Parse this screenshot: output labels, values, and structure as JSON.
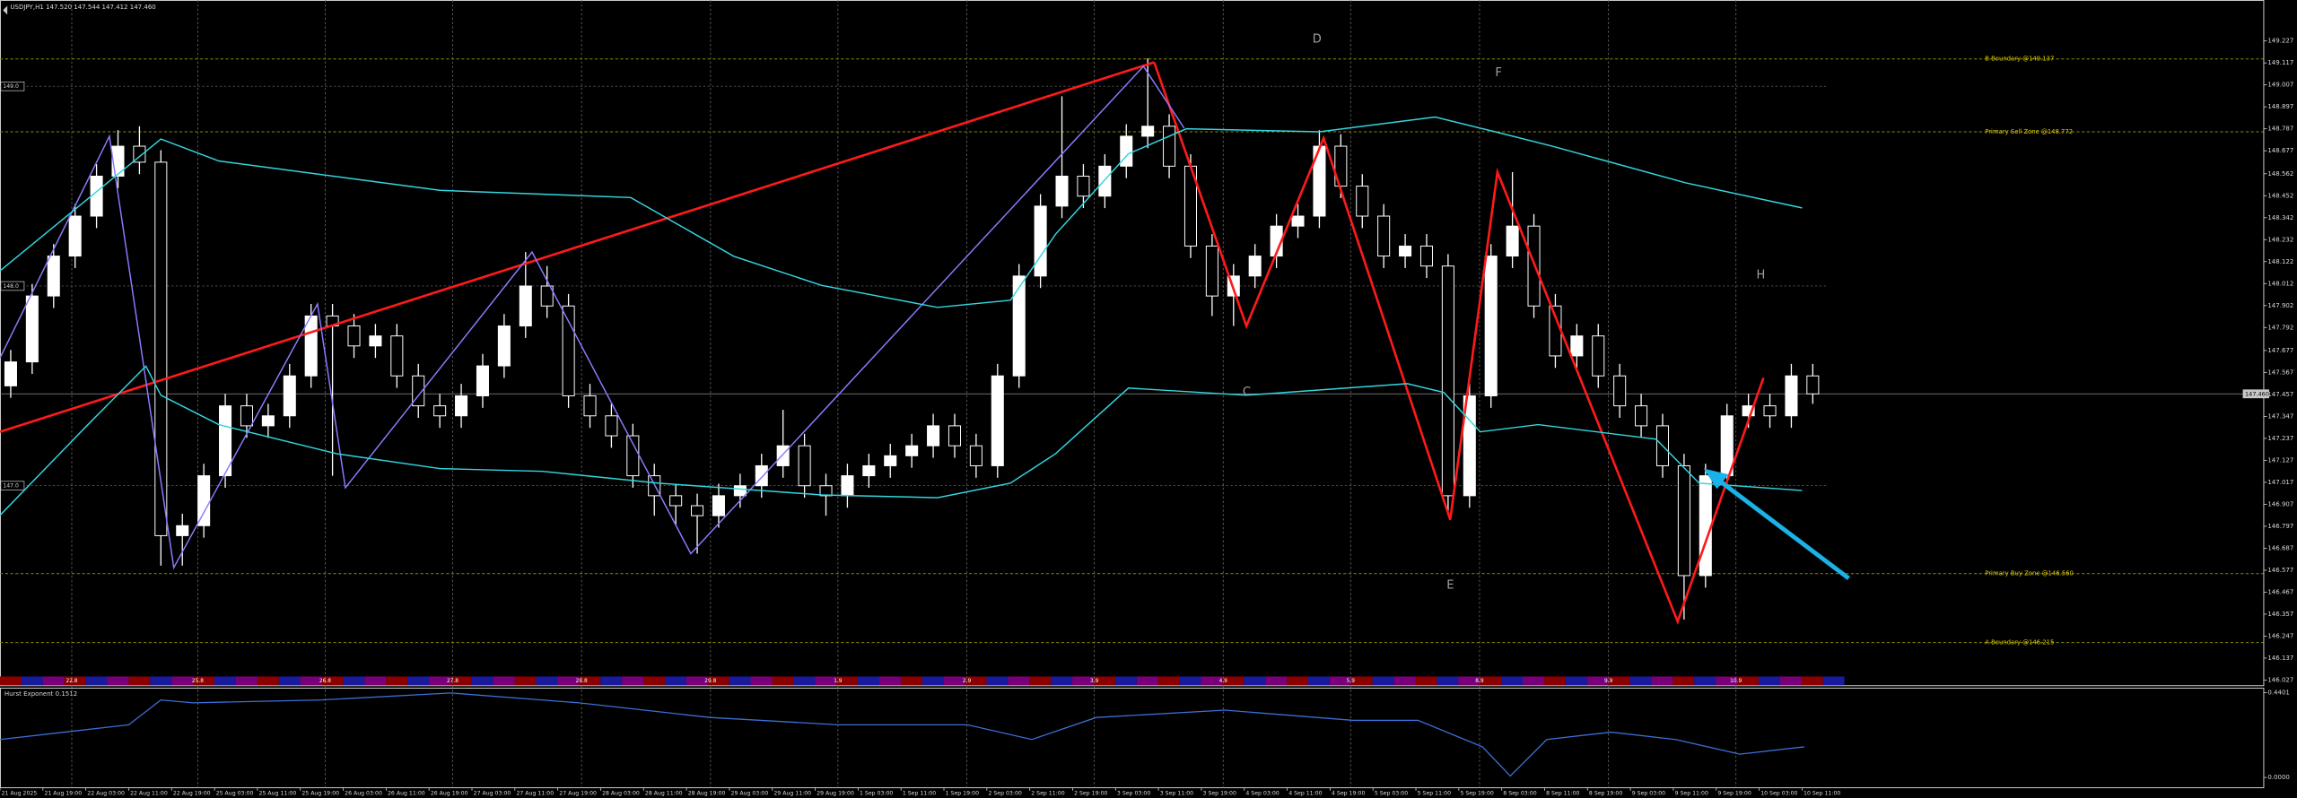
{
  "chart_data": [
    {
      "type": "candlestick",
      "title": "USDJPY,H1 147.520 147.544 147.412 147.460",
      "categories": [
        "21 Aug 2025",
        "21 Aug 19:00",
        "22 Aug 03:00",
        "22 Aug 11:00",
        "22 Aug 19:00",
        "25 Aug 03:00",
        "25 Aug 11:00",
        "25 Aug 19:00",
        "26 Aug 03:00",
        "26 Aug 11:00",
        "26 Aug 19:00",
        "27 Aug 03:00",
        "27 Aug 11:00",
        "27 Aug 19:00",
        "28 Aug 03:00",
        "28 Aug 11:00",
        "28 Aug 19:00",
        "29 Aug 03:00",
        "29 Aug 11:00",
        "29 Aug 19:00",
        "1 Sep 03:00",
        "1 Sep 11:00",
        "1 Sep 19:00",
        "2 Sep 03:00",
        "2 Sep 11:00",
        "2 Sep 19:00",
        "3 Sep 03:00",
        "3 Sep 11:00",
        "3 Sep 19:00",
        "4 Sep 03:00",
        "4 Sep 11:00",
        "4 Sep 19:00",
        "5 Sep 03:00",
        "5 Sep 11:00",
        "5 Sep 19:00",
        "8 Sep 03:00",
        "8 Sep 11:00",
        "8 Sep 19:00",
        "9 Sep 03:00",
        "9 Sep 11:00",
        "9 Sep 19:00",
        "10 Sep 03:00",
        "10 Sep 11:00"
      ],
      "ohlc": [
        [
          147.5,
          147.68,
          147.44,
          147.62
        ],
        [
          147.62,
          148.01,
          147.56,
          147.95
        ],
        [
          147.95,
          148.21,
          147.89,
          148.15
        ],
        [
          148.15,
          148.41,
          148.09,
          148.35
        ],
        [
          148.35,
          148.61,
          148.29,
          148.55
        ],
        [
          148.55,
          148.78,
          148.49,
          148.7
        ],
        [
          148.7,
          148.8,
          148.56,
          148.62
        ],
        [
          148.62,
          148.68,
          146.6,
          146.75
        ],
        [
          146.75,
          146.86,
          146.6,
          146.8
        ],
        [
          146.8,
          147.11,
          146.74,
          147.05
        ],
        [
          147.05,
          147.46,
          146.99,
          147.4
        ],
        [
          147.4,
          147.46,
          147.24,
          147.3
        ],
        [
          147.3,
          147.41,
          147.24,
          147.35
        ],
        [
          147.35,
          147.61,
          147.29,
          147.55
        ],
        [
          147.55,
          147.91,
          147.49,
          147.85
        ],
        [
          147.85,
          147.91,
          147.05,
          147.8
        ],
        [
          147.8,
          147.86,
          147.64,
          147.7
        ],
        [
          147.7,
          147.81,
          147.64,
          147.75
        ],
        [
          147.75,
          147.81,
          147.49,
          147.55
        ],
        [
          147.55,
          147.61,
          147.34,
          147.4
        ],
        [
          147.4,
          147.46,
          147.29,
          147.35
        ],
        [
          147.35,
          147.51,
          147.29,
          147.45
        ],
        [
          147.45,
          147.66,
          147.39,
          147.6
        ],
        [
          147.6,
          147.86,
          147.54,
          147.8
        ],
        [
          147.8,
          148.17,
          147.74,
          148.0
        ],
        [
          148.0,
          148.1,
          147.84,
          147.9
        ],
        [
          147.9,
          147.96,
          147.39,
          147.45
        ],
        [
          147.45,
          147.51,
          147.29,
          147.35
        ],
        [
          147.35,
          147.41,
          147.19,
          147.25
        ],
        [
          147.25,
          147.31,
          146.99,
          147.05
        ],
        [
          147.05,
          147.11,
          146.85,
          146.95
        ],
        [
          146.95,
          147.01,
          146.8,
          146.9
        ],
        [
          146.9,
          146.96,
          146.66,
          146.85
        ],
        [
          146.85,
          147.01,
          146.79,
          146.95
        ],
        [
          146.95,
          147.06,
          146.89,
          147.0
        ],
        [
          147.0,
          147.16,
          146.94,
          147.1
        ],
        [
          147.1,
          147.38,
          147.04,
          147.2
        ],
        [
          147.2,
          147.26,
          146.94,
          147.0
        ],
        [
          147.0,
          147.06,
          146.85,
          146.95
        ],
        [
          146.95,
          147.11,
          146.89,
          147.05
        ],
        [
          147.05,
          147.16,
          146.99,
          147.1
        ],
        [
          147.1,
          147.21,
          147.04,
          147.15
        ],
        [
          147.15,
          147.26,
          147.09,
          147.2
        ],
        [
          147.2,
          147.36,
          147.14,
          147.3
        ],
        [
          147.3,
          147.36,
          147.14,
          147.2
        ],
        [
          147.2,
          147.26,
          147.04,
          147.1
        ],
        [
          147.1,
          147.61,
          147.04,
          147.55
        ],
        [
          147.55,
          148.11,
          147.49,
          148.05
        ],
        [
          148.05,
          148.46,
          147.99,
          148.4
        ],
        [
          148.4,
          148.95,
          148.34,
          148.55
        ],
        [
          148.55,
          148.61,
          148.39,
          148.45
        ],
        [
          148.45,
          148.66,
          148.39,
          148.6
        ],
        [
          148.6,
          148.81,
          148.54,
          148.75
        ],
        [
          148.75,
          149.14,
          148.69,
          148.8
        ],
        [
          148.8,
          148.86,
          148.54,
          148.6
        ],
        [
          148.6,
          148.66,
          148.14,
          148.2
        ],
        [
          148.2,
          148.26,
          147.85,
          147.95
        ],
        [
          147.95,
          148.11,
          147.8,
          148.05
        ],
        [
          148.05,
          148.21,
          147.99,
          148.15
        ],
        [
          148.15,
          148.36,
          148.09,
          148.3
        ],
        [
          148.3,
          148.41,
          148.24,
          148.35
        ],
        [
          148.35,
          148.78,
          148.29,
          148.7
        ],
        [
          148.7,
          148.76,
          148.44,
          148.5
        ],
        [
          148.5,
          148.56,
          148.29,
          148.35
        ],
        [
          148.35,
          148.41,
          148.09,
          148.15
        ],
        [
          148.15,
          148.26,
          148.09,
          148.2
        ],
        [
          148.2,
          148.26,
          148.04,
          148.1
        ],
        [
          148.1,
          148.16,
          146.85,
          146.95
        ],
        [
          146.95,
          147.51,
          146.89,
          147.45
        ],
        [
          147.45,
          148.21,
          147.39,
          148.15
        ],
        [
          148.15,
          148.57,
          148.09,
          148.3
        ],
        [
          148.3,
          148.36,
          147.84,
          147.9
        ],
        [
          147.9,
          147.96,
          147.59,
          147.65
        ],
        [
          147.65,
          147.81,
          147.59,
          147.75
        ],
        [
          147.75,
          147.81,
          147.49,
          147.55
        ],
        [
          147.55,
          147.61,
          147.34,
          147.4
        ],
        [
          147.4,
          147.46,
          147.24,
          147.3
        ],
        [
          147.3,
          147.36,
          147.04,
          147.1
        ],
        [
          147.1,
          147.16,
          146.33,
          146.55
        ],
        [
          146.55,
          147.11,
          146.49,
          147.05
        ],
        [
          147.05,
          147.41,
          146.99,
          147.35
        ],
        [
          147.35,
          147.46,
          147.29,
          147.4
        ],
        [
          147.4,
          147.46,
          147.29,
          147.35
        ],
        [
          147.35,
          147.61,
          147.29,
          147.55
        ],
        [
          147.55,
          147.61,
          147.41,
          147.46
        ]
      ],
      "xlim": [
        -0.5,
        105
      ],
      "ylim": [
        146.001,
        149.432
      ],
      "yticks": [
        149.227,
        149.117,
        149.007,
        148.897,
        148.787,
        148.677,
        148.562,
        148.452,
        148.342,
        148.232,
        148.122,
        148.012,
        147.902,
        147.792,
        147.677,
        147.567,
        147.457,
        147.347,
        147.237,
        147.127,
        147.017,
        146.907,
        146.797,
        146.687,
        146.577,
        146.467,
        146.357,
        146.247,
        146.137,
        146.027
      ],
      "levels": [
        {
          "value": 149.137,
          "label": "B Boundary @149.137"
        },
        {
          "value": 148.772,
          "label": "Primary Sell Zone @148.772"
        },
        {
          "value": 146.56,
          "label": "Primary Buy Zone @146.560"
        },
        {
          "value": 146.215,
          "label": "A Boundary @146.215"
        }
      ],
      "price_tags": [
        {
          "value": 149,
          "label": "149.0"
        },
        {
          "value": 148,
          "label": "148.0"
        },
        {
          "value": 147,
          "label": "147.0"
        }
      ],
      "current_price": {
        "value": 147.46,
        "label": "147.460"
      },
      "annotations": [
        "D",
        "F",
        "H",
        "C",
        "E"
      ],
      "day_markers": [
        "22.8",
        "25.8",
        "26.8",
        "27.8",
        "28.8",
        "29.8",
        "1.9",
        "2.9",
        "3.9",
        "4.9",
        "5.9",
        "8.9",
        "9.9",
        "10.9"
      ],
      "lines": [
        {
          "color": "#ff1a1a",
          "x": [
            -0.5,
            53.3
          ],
          "values": [
            147.27,
            149.12
          ]
        },
        {
          "color": "#ff1a1a",
          "x": [
            53.3,
            57.6,
            61.2,
            67.1,
            69.3,
            77.7,
            81.7
          ],
          "values": [
            149.12,
            147.8,
            148.74,
            146.83,
            148.57,
            146.32,
            147.54
          ]
        },
        {
          "color": "#8a7cff",
          "x": [
            -0.5,
            4.6,
            7.6,
            14.3,
            15.6,
            24.3,
            31.7,
            52.8,
            54.7
          ],
          "values": [
            147.64,
            148.75,
            146.59,
            147.91,
            146.99,
            148.17,
            146.66,
            149.1,
            148.79
          ]
        },
        {
          "color": "#33d6e0",
          "x": [
            -0.5,
            7.0,
            9.7,
            20.0,
            28.9,
            33.7,
            37.8,
            43.2,
            46.6,
            48.7,
            52.1,
            54.8,
            61.0,
            66.4,
            69.2,
            71.9,
            78.1,
            83.5
          ],
          "values": [
            148.076,
            148.736,
            148.626,
            148.479,
            148.443,
            148.149,
            148.003,
            147.893,
            147.929,
            148.259,
            148.662,
            148.787,
            148.772,
            148.846,
            148.772,
            148.699,
            148.516,
            148.391
          ]
        },
        {
          "color": "#33d6e0",
          "x": [
            -0.5,
            3.6,
            6.3,
            7.0,
            9.7,
            15.2,
            20.0,
            24.8,
            30.2,
            37.8,
            43.2,
            46.6,
            48.7,
            52.1,
            57.6,
            65.1,
            66.8,
            68.5,
            71.2,
            76.7,
            78.7,
            83.5
          ],
          "values": [
            146.852,
            147.306,
            147.599,
            147.453,
            147.306,
            147.16,
            147.086,
            147.072,
            147.013,
            146.954,
            146.94,
            147.013,
            147.16,
            147.489,
            147.453,
            147.511,
            147.467,
            147.27,
            147.306,
            147.233,
            147.013,
            146.976
          ]
        }
      ]
    },
    {
      "type": "line",
      "title": "Hurst Exponent 0.1512",
      "color": "#3b6fd6",
      "xlim": [
        -0.5,
        105
      ],
      "x": [
        -0.5,
        2.5,
        5.5,
        7.0,
        8.5,
        14.5,
        20.5,
        26.5,
        32.6,
        38.6,
        44.6,
        47.6,
        50.6,
        56.6,
        62.6,
        65.6,
        68.6,
        69.9,
        71.6,
        74.6,
        77.6,
        80.6,
        83.6
      ],
      "values": [
        0.197,
        0.235,
        0.273,
        0.402,
        0.387,
        0.402,
        0.438,
        0.387,
        0.311,
        0.273,
        0.273,
        0.197,
        0.311,
        0.349,
        0.296,
        0.296,
        0.159,
        0.008,
        0.197,
        0.235,
        0.197,
        0.121,
        0.159
      ],
      "ylim": [
        0,
        0.4401
      ],
      "yticks": [
        0.4401,
        {
          "value": 0,
          "label": "0.0000"
        }
      ]
    }
  ]
}
